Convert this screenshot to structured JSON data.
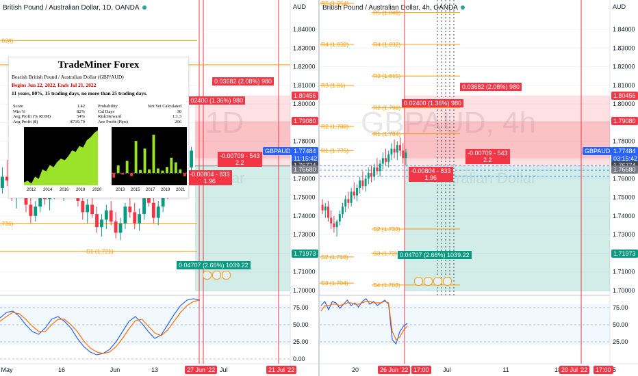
{
  "left": {
    "header": "British Pound / Australian Dollar, 1D, OANDA",
    "currency": "AUD",
    "watermark_main": "1D",
    "watermark_sub": "Dollar",
    "price_ticks": [
      "1.84000",
      "1.83000",
      "1.82000",
      "1.81000",
      "1.80000",
      "1.79000",
      "1.78000",
      "1.77000",
      "1.76000",
      "1.75000",
      "1.74000",
      "1.73000",
      "1.72000",
      "1.71000",
      "1.70000"
    ],
    "price_tags": [
      {
        "text": "1.80456",
        "bg": "#f23645",
        "y": 1.80456
      },
      {
        "text": "1.79080",
        "bg": "#f23645",
        "y": 1.7908
      },
      {
        "text": "GBPAUD",
        "bg": "#2962ff",
        "y": 1.77484
      },
      {
        "text": "1.77484",
        "bg": "#2962ff",
        "y": 1.77484
      },
      {
        "text": "11:15:42",
        "bg": "#2962ff",
        "y": 1.7711
      },
      {
        "text": "1.76774",
        "bg": "#434651",
        "y": 1.76774
      },
      {
        "text": "1.76680",
        "bg": "#787b86",
        "y": 1.7668
      },
      {
        "text": "1.71973",
        "bg": "#089981",
        "y": 1.71973
      }
    ],
    "pivot_labels": [
      {
        "text": "R2 (1.821)",
        "y": 1.821
      },
      {
        "text": "S1 (1.721)",
        "y": 1.721
      }
    ],
    "edge_labels": [
      {
        "text": ".834)",
        "y": 1.834
      },
      {
        "text": ".736)",
        "y": 1.736
      }
    ],
    "annotations": [
      {
        "text": "0.03682 (2.08%) 980",
        "bg": "#f23645"
      },
      {
        "text": "0.02400 (1.36%) 980",
        "bg": "#f23645"
      },
      {
        "text": "-0.00709 - 543",
        "sub": "2.2",
        "bg": "#f23645"
      },
      {
        "text": "-0.00804 - 833",
        "sub": "1.96",
        "bg": "#f23645"
      },
      {
        "text": "0.04707 (2.66%) 1039.22",
        "bg": "#089981"
      }
    ],
    "stoch_ticks": [
      "75.00",
      "50.00",
      "25.00",
      "0.00"
    ],
    "time_ticks": [
      "May",
      "16",
      "Jun",
      "13"
    ],
    "time_tags": [
      {
        "text": "27 Jun '22",
        "bg": "#f23645"
      },
      {
        "text": "Jul",
        "bg": ""
      },
      {
        "text": "21 Jul '22",
        "bg": "#f23645"
      }
    ]
  },
  "right": {
    "header": "British Pound / Australian Dollar, 4h, OANDA",
    "currency": "AUD",
    "watermark_main": "GBPAUD, 4h",
    "watermark_sub": "Australian Dollar",
    "price_ticks": [
      "1.84000",
      "1.83000",
      "1.82000",
      "1.81000",
      "1.80000",
      "1.79000",
      "1.78000",
      "1.77000",
      "1.76000",
      "1.75000",
      "1.74000",
      "1.73000",
      "1.72000",
      "1.71000",
      "1.70000"
    ],
    "price_tags": [
      {
        "text": "1.80456",
        "bg": "#f23645",
        "y": 1.80456
      },
      {
        "text": "1.79080",
        "bg": "#f23645",
        "y": 1.7908
      },
      {
        "text": "GBPAUD",
        "bg": "#2962ff",
        "y": 1.77484
      },
      {
        "text": "1.77484",
        "bg": "#2962ff",
        "y": 1.77484
      },
      {
        "text": "03:15:42",
        "bg": "#2962ff",
        "y": 1.7711
      },
      {
        "text": "1.76774",
        "bg": "#434651",
        "y": 1.76774
      },
      {
        "text": "1.76680",
        "bg": "#787b86",
        "y": 1.7668
      },
      {
        "text": "1.71973",
        "bg": "#089981",
        "y": 1.71973
      }
    ],
    "pivot_labels_left": [
      {
        "text": "R5 (1.854)",
        "y": 1.854
      },
      {
        "text": "R4 (1.832)",
        "y": 1.832
      },
      {
        "text": "R3 (1.81)",
        "y": 1.81
      },
      {
        "text": "R2 (1.788)",
        "y": 1.788
      },
      {
        "text": "R1 (1.775)",
        "y": 1.775
      },
      {
        "text": "S2 (1.718)",
        "y": 1.718
      },
      {
        "text": "S3 (1.704)",
        "y": 1.704
      }
    ],
    "pivot_labels_right": [
      {
        "text": "R5 (1.849)",
        "y": 1.849
      },
      {
        "text": "R4 (1.832)",
        "y": 1.832
      },
      {
        "text": "R3 (1.815)",
        "y": 1.815
      },
      {
        "text": "R2 (1.798)",
        "y": 1.798
      },
      {
        "text": "R1 (1.784)",
        "y": 1.784
      },
      {
        "text": "S2 (1.733)",
        "y": 1.733
      },
      {
        "text": "S3 (1.72)",
        "y": 1.72
      },
      {
        "text": "S4 (1.703)",
        "y": 1.703
      }
    ],
    "annotations": [
      {
        "text": "0.03682 (2.08%) 980",
        "bg": "#f23645"
      },
      {
        "text": "0.02400 (1.36%) 980",
        "bg": "#f23645"
      },
      {
        "text": "-0.00709 - 543",
        "sub": "2.2",
        "bg": "#f23645"
      },
      {
        "text": "-0.00804 - 833",
        "sub": "1.96",
        "bg": "#f23645"
      },
      {
        "text": "0.04707 (2.66%) 1039.22",
        "bg": "#089981"
      }
    ],
    "stoch_ticks": [
      "75.00",
      "50.00",
      "25.00"
    ],
    "time_ticks": [
      "20",
      "Jul",
      "11",
      "18",
      "25"
    ],
    "time_tags": [
      {
        "text": "26 Jun '22",
        "bg": "#f23645"
      },
      {
        "text": "17:00",
        "bg": "#f23645"
      },
      {
        "text": "20 Jul '22",
        "bg": "#f23645"
      },
      {
        "text": "17:00",
        "bg": "#f23645"
      }
    ]
  },
  "overlay": {
    "title": "TradeMiner Forex",
    "line1": "Bearish British Pound / Australian Dollar (GBP/AUD)",
    "line2": "Begins Jun 22, 2022, Ends Jul 21, 2022",
    "line3": "11 years, 80%, 15 trading days, no more than 25 trading days.",
    "stats_left": [
      {
        "k": "Score",
        "v": "1.42"
      },
      {
        "k": "Win %",
        "v": "82%"
      },
      {
        "k": "Avg Profit (% ROM)",
        "v": "54%"
      },
      {
        "k": "Avg Profit ($)",
        "v": "$719.79"
      }
    ],
    "stats_right": [
      {
        "k": "Probability",
        "v": "Not Yet Calculated"
      },
      {
        "k": "Cal Days",
        "v": "30"
      },
      {
        "k": "Risk:Reward",
        "v": "1:1.3"
      },
      {
        "k": "Ave Profit (Pips)",
        "v": "296"
      }
    ],
    "equity_years": [
      "2012",
      "2014",
      "2016",
      "2018",
      "2020"
    ],
    "bar_years": [
      "2013",
      "2015",
      "2017",
      "2019",
      "2021"
    ],
    "bar_values": [
      -150,
      250,
      -50,
      400,
      -100,
      1050,
      100,
      800,
      120,
      1250,
      150,
      80,
      200,
      500,
      350,
      120,
      -100
    ],
    "equity_values": [
      0,
      60,
      -40,
      200,
      120,
      450,
      380,
      600,
      520,
      700,
      820,
      760,
      900,
      1100,
      1050,
      1250,
      1200,
      1450,
      1550,
      1700,
      1800
    ]
  },
  "chart_data": [
    {
      "type": "candlestick",
      "title": "British Pound / Australian Dollar, 1D, OANDA",
      "ylabel": "AUD",
      "ylim": [
        1.695,
        1.845
      ],
      "x": [
        "May",
        "16",
        "Jun",
        "13",
        "27 Jun '22",
        "Jul",
        "21 Jul '22"
      ],
      "ohlc": [
        [
          1.755,
          1.766,
          1.752,
          1.761
        ],
        [
          1.761,
          1.77,
          1.756,
          1.759
        ],
        [
          1.759,
          1.764,
          1.748,
          1.752
        ],
        [
          1.752,
          1.758,
          1.744,
          1.756
        ],
        [
          1.756,
          1.762,
          1.75,
          1.754
        ],
        [
          1.754,
          1.758,
          1.742,
          1.746
        ],
        [
          1.746,
          1.751,
          1.736,
          1.74
        ],
        [
          1.74,
          1.748,
          1.737,
          1.745
        ],
        [
          1.745,
          1.756,
          1.742,
          1.752
        ],
        [
          1.752,
          1.76,
          1.746,
          1.749
        ],
        [
          1.749,
          1.757,
          1.743,
          1.754
        ],
        [
          1.754,
          1.763,
          1.749,
          1.758
        ],
        [
          1.758,
          1.762,
          1.75,
          1.753
        ],
        [
          1.753,
          1.761,
          1.748,
          1.757
        ],
        [
          1.757,
          1.766,
          1.751,
          1.761
        ],
        [
          1.761,
          1.768,
          1.754,
          1.756
        ],
        [
          1.756,
          1.76,
          1.745,
          1.748
        ],
        [
          1.748,
          1.753,
          1.738,
          1.742
        ],
        [
          1.742,
          1.749,
          1.736,
          1.746
        ],
        [
          1.746,
          1.752,
          1.739,
          1.741
        ],
        [
          1.741,
          1.745,
          1.731,
          1.734
        ],
        [
          1.734,
          1.741,
          1.729,
          1.738
        ],
        [
          1.738,
          1.746,
          1.733,
          1.743
        ],
        [
          1.743,
          1.748,
          1.735,
          1.737
        ],
        [
          1.737,
          1.742,
          1.728,
          1.731
        ],
        [
          1.731,
          1.739,
          1.727,
          1.736
        ],
        [
          1.736,
          1.747,
          1.733,
          1.745
        ],
        [
          1.745,
          1.752,
          1.739,
          1.742
        ],
        [
          1.742,
          1.747,
          1.733,
          1.736
        ],
        [
          1.736,
          1.744,
          1.732,
          1.741
        ],
        [
          1.741,
          1.753,
          1.738,
          1.75
        ],
        [
          1.75,
          1.759,
          1.745,
          1.747
        ],
        [
          1.747,
          1.751,
          1.736,
          1.739
        ],
        [
          1.739,
          1.748,
          1.735,
          1.745
        ],
        [
          1.745,
          1.758,
          1.742,
          1.756
        ],
        [
          1.756,
          1.764,
          1.749,
          1.752
        ],
        [
          1.752,
          1.768,
          1.75,
          1.765
        ],
        [
          1.765,
          1.772,
          1.758,
          1.761
        ],
        [
          1.761,
          1.776,
          1.759,
          1.773
        ],
        [
          1.773,
          1.779,
          1.762,
          1.766
        ],
        [
          1.766,
          1.777,
          1.764,
          1.775
        ]
      ]
    },
    {
      "type": "candlestick",
      "title": "British Pound / Australian Dollar, 4h, OANDA",
      "ylabel": "AUD",
      "ylim": [
        1.695,
        1.845
      ],
      "x": [
        "20",
        "26 Jun '22",
        "Jul",
        "11",
        "18",
        "20 Jul '22",
        "25"
      ],
      "ohlc": [
        [
          1.746,
          1.749,
          1.741,
          1.743
        ],
        [
          1.743,
          1.747,
          1.739,
          1.745
        ],
        [
          1.745,
          1.748,
          1.737,
          1.739
        ],
        [
          1.739,
          1.743,
          1.733,
          1.736
        ],
        [
          1.736,
          1.74,
          1.731,
          1.734
        ],
        [
          1.734,
          1.738,
          1.729,
          1.737
        ],
        [
          1.737,
          1.743,
          1.735,
          1.741
        ],
        [
          1.741,
          1.747,
          1.739,
          1.745
        ],
        [
          1.745,
          1.751,
          1.742,
          1.749
        ],
        [
          1.749,
          1.753,
          1.744,
          1.747
        ],
        [
          1.747,
          1.755,
          1.745,
          1.753
        ],
        [
          1.753,
          1.758,
          1.749,
          1.751
        ],
        [
          1.751,
          1.757,
          1.748,
          1.755
        ],
        [
          1.755,
          1.761,
          1.752,
          1.759
        ],
        [
          1.759,
          1.764,
          1.754,
          1.756
        ],
        [
          1.756,
          1.762,
          1.753,
          1.76
        ],
        [
          1.76,
          1.766,
          1.757,
          1.763
        ],
        [
          1.763,
          1.767,
          1.758,
          1.761
        ],
        [
          1.761,
          1.768,
          1.759,
          1.766
        ],
        [
          1.766,
          1.771,
          1.762,
          1.764
        ],
        [
          1.764,
          1.77,
          1.761,
          1.768
        ],
        [
          1.768,
          1.774,
          1.765,
          1.771
        ],
        [
          1.771,
          1.776,
          1.767,
          1.769
        ],
        [
          1.769,
          1.775,
          1.766,
          1.773
        ],
        [
          1.773,
          1.779,
          1.77,
          1.776
        ],
        [
          1.776,
          1.781,
          1.771,
          1.774
        ],
        [
          1.774,
          1.78,
          1.77,
          1.778
        ],
        [
          1.778,
          1.782,
          1.772,
          1.775
        ],
        [
          1.775,
          1.779,
          1.768,
          1.771
        ],
        [
          1.771,
          1.776,
          1.767,
          1.774
        ]
      ]
    }
  ]
}
